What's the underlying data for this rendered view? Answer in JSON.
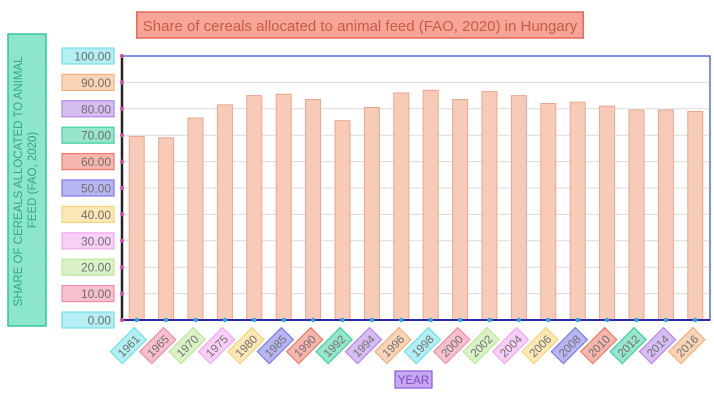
{
  "chart_data": {
    "type": "bar",
    "title": "Share of cereals allocated to animal feed (FAO, 2020)  in Hungary",
    "xlabel": "YEAR",
    "ylabel": "SHARE OF CEREALS ALLOCATED TO ANIMAL FEED (FAO, 2020)",
    "ylim": [
      0,
      100
    ],
    "yticks": [
      "0.00",
      "10.00",
      "20.00",
      "30.00",
      "40.00",
      "50.00",
      "60.00",
      "70.00",
      "80.00",
      "90.00",
      "100.00"
    ],
    "categories": [
      "1961",
      "1965",
      "1970",
      "1975",
      "1980",
      "1985",
      "1990",
      "1992",
      "1994",
      "1996",
      "1998",
      "2000",
      "2002",
      "2004",
      "2006",
      "2008",
      "2010",
      "2012",
      "2014",
      "2016"
    ],
    "values": [
      69.5,
      69.0,
      76.5,
      81.5,
      85.0,
      85.5,
      83.5,
      75.5,
      80.5,
      86.0,
      87.0,
      83.5,
      86.5,
      85.0,
      82.0,
      82.5,
      81.0,
      79.5,
      79.5,
      79.0
    ],
    "grid": true,
    "bar_color": "#f8cbb8",
    "bar_edge": "#e9a68d",
    "label_colors": [
      "#72e0e8",
      "#f28ca8",
      "#bde89a",
      "#f3a8f0",
      "#f8d57a",
      "#7d7ae8",
      "#f07a6a",
      "#3fd0a2",
      "#b586e8",
      "#f6b07a"
    ]
  }
}
